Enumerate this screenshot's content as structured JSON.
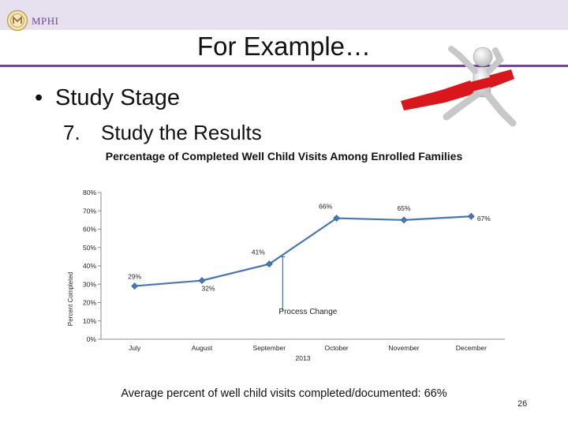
{
  "slide": {
    "logo_text": "MPHI",
    "title": "For Example…",
    "bullet": "Study Stage",
    "sub_number": "7.",
    "sub_text": "Study the Results",
    "footer_note": "Average percent of well child visits completed/documented: 66%",
    "page_number": "26"
  },
  "icons": {
    "bullet": "•",
    "runner_image": "runner-crossing-finish-line"
  },
  "colors": {
    "line": "#4a76b0",
    "band": "#e7e0ee",
    "accent_purple": "#6e4a8f",
    "ribbon": "#d8161c"
  },
  "chart_data": {
    "type": "line",
    "title": "Percentage of Completed Well Child Visits Among Enrolled Families",
    "ylabel": "Percent Completed",
    "xlabel": "",
    "year_label": "2013",
    "categories": [
      "July",
      "August",
      "September",
      "October",
      "November",
      "December"
    ],
    "series": [
      {
        "values": [
          29,
          32,
          41,
          66,
          65,
          67
        ],
        "point_labels": [
          "29%",
          "32%",
          "41%",
          "66%",
          "65%",
          "67%"
        ]
      }
    ],
    "ylim": [
      0,
      80
    ],
    "yticks": [
      0,
      10,
      20,
      30,
      40,
      50,
      60,
      70,
      80
    ],
    "ytick_labels": [
      "0%",
      "10%",
      "20%",
      "30%",
      "40%",
      "50%",
      "60%",
      "70%",
      "80%"
    ],
    "grid": false,
    "legend": "none",
    "annotation": {
      "text": "Process Change",
      "x": 2.2,
      "y": 45
    }
  }
}
